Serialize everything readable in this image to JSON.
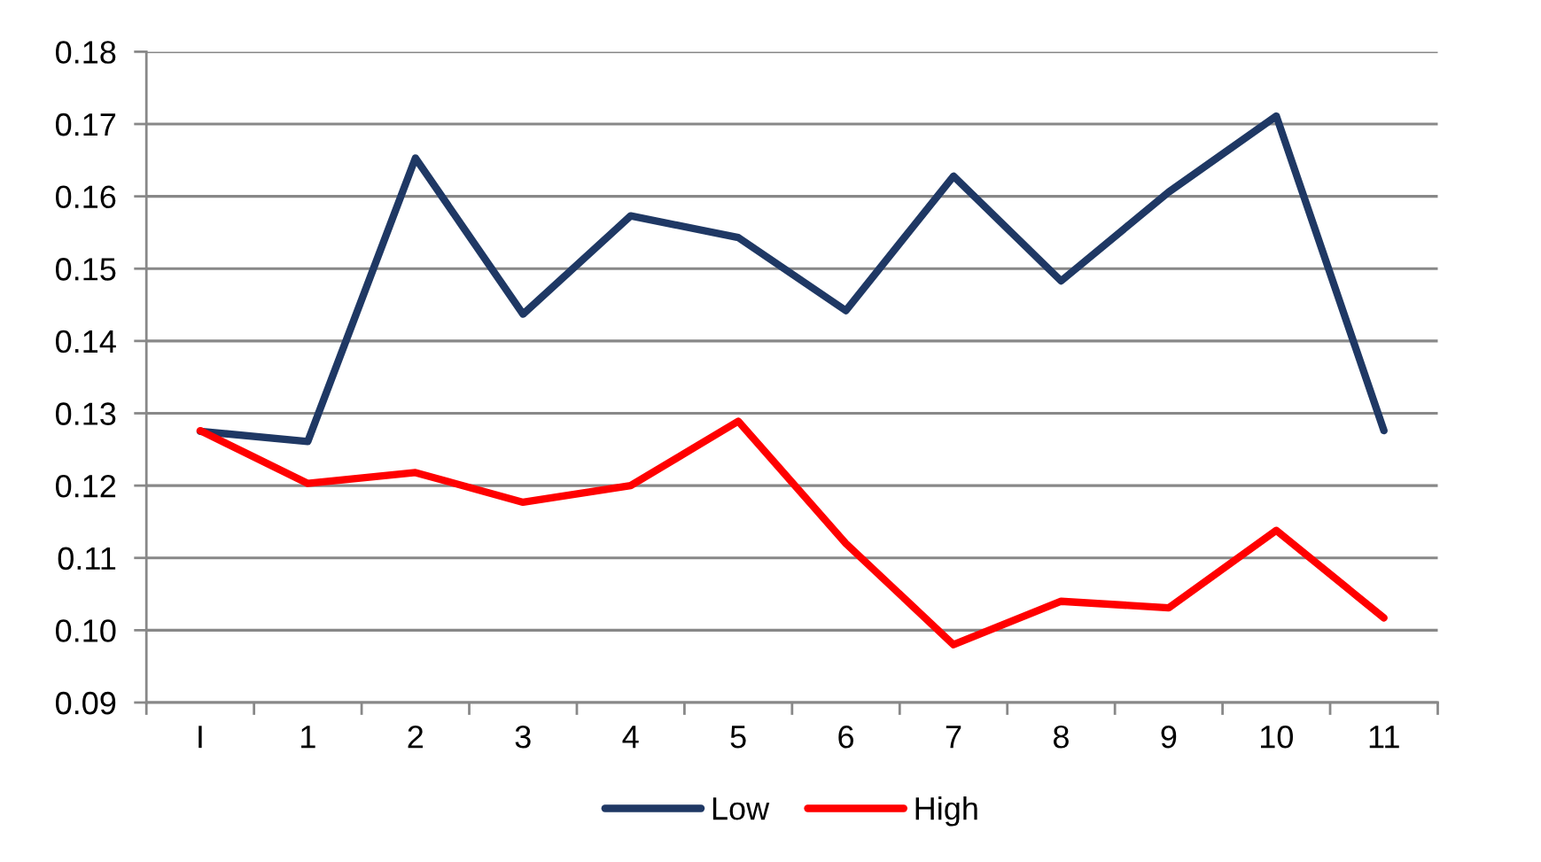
{
  "chart_data": {
    "type": "line",
    "categories": [
      "I",
      "1",
      "2",
      "3",
      "4",
      "5",
      "6",
      "7",
      "8",
      "9",
      "10",
      "11"
    ],
    "series": [
      {
        "name": "Low",
        "color": "#1f3864",
        "values": [
          0.1275,
          0.1261,
          0.1653,
          0.1437,
          0.1573,
          0.1543,
          0.1442,
          0.1628,
          0.1483,
          0.1606,
          0.1711,
          0.1276
        ]
      },
      {
        "name": "High",
        "color": "#ff0000",
        "values": [
          0.1276,
          0.1203,
          0.1218,
          0.1177,
          0.12,
          0.1289,
          0.112,
          0.098,
          0.104,
          0.1031,
          0.1138,
          0.1017
        ]
      }
    ],
    "ylim": [
      0.09,
      0.18
    ],
    "yticks": [
      0.09,
      {
        "value": 0.1,
        "label": "0.10"
      },
      0.11,
      0.12,
      0.13,
      0.14,
      0.15,
      0.16,
      0.17,
      0.18
    ],
    "grid": "y",
    "legend": "bottom",
    "marker": "none",
    "line_style": "solid"
  }
}
